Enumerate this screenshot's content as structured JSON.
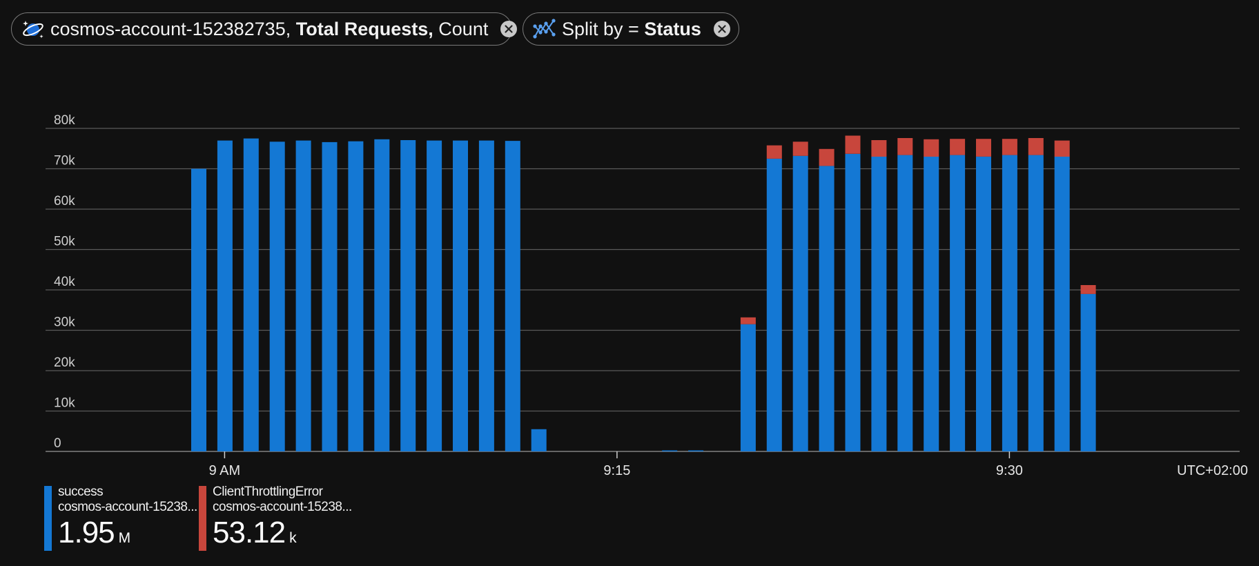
{
  "pills": [
    {
      "icon": "cosmos-db-icon",
      "text_plain": "cosmos-account-152382735,",
      "text_bold": "Total Requests,",
      "text_tail": "Count"
    },
    {
      "icon": "split-chart-icon",
      "text_plain": "Split by =",
      "text_bold": "Status",
      "text_tail": ""
    }
  ],
  "timezone": "UTC+02:00",
  "legend": [
    {
      "line1": "success",
      "line2": "cosmos-account-15238...",
      "value": "1.95",
      "unit": "M",
      "color": "#1478d4"
    },
    {
      "line1": "ClientThrottlingError",
      "line2": "cosmos-account-15238...",
      "value": "53.12",
      "unit": "k",
      "color": "#c8463c"
    }
  ],
  "chart_data": {
    "type": "bar",
    "stacked": true,
    "grid": true,
    "ylim": [
      0,
      80000
    ],
    "y_ticks": [
      "80k",
      "70k",
      "60k",
      "50k",
      "40k",
      "30k",
      "20k",
      "10k",
      "0"
    ],
    "x_ticks": [
      "9 AM",
      "9:15",
      "9:30"
    ],
    "x_unit": "minute",
    "x_start": "8:59",
    "series": [
      {
        "name": "success",
        "color": "#1478d4",
        "values": [
          70000,
          77000,
          77500,
          76700,
          77000,
          76600,
          76800,
          77300,
          77100,
          77000,
          77000,
          77000,
          76900,
          5500,
          0,
          0,
          0,
          0,
          100,
          100,
          0,
          31500,
          72500,
          73200,
          70700,
          73700,
          73000,
          73400,
          73000,
          73400,
          73000,
          73400,
          73400,
          73000,
          39000
        ]
      },
      {
        "name": "ClientThrottlingError",
        "color": "#c8463c",
        "values": [
          0,
          0,
          0,
          0,
          0,
          0,
          0,
          0,
          0,
          0,
          0,
          0,
          0,
          0,
          0,
          0,
          0,
          0,
          0,
          0,
          0,
          1700,
          3300,
          3500,
          4200,
          4500,
          4100,
          4200,
          4300,
          4000,
          4400,
          4000,
          4200,
          4000,
          2200
        ]
      }
    ]
  }
}
